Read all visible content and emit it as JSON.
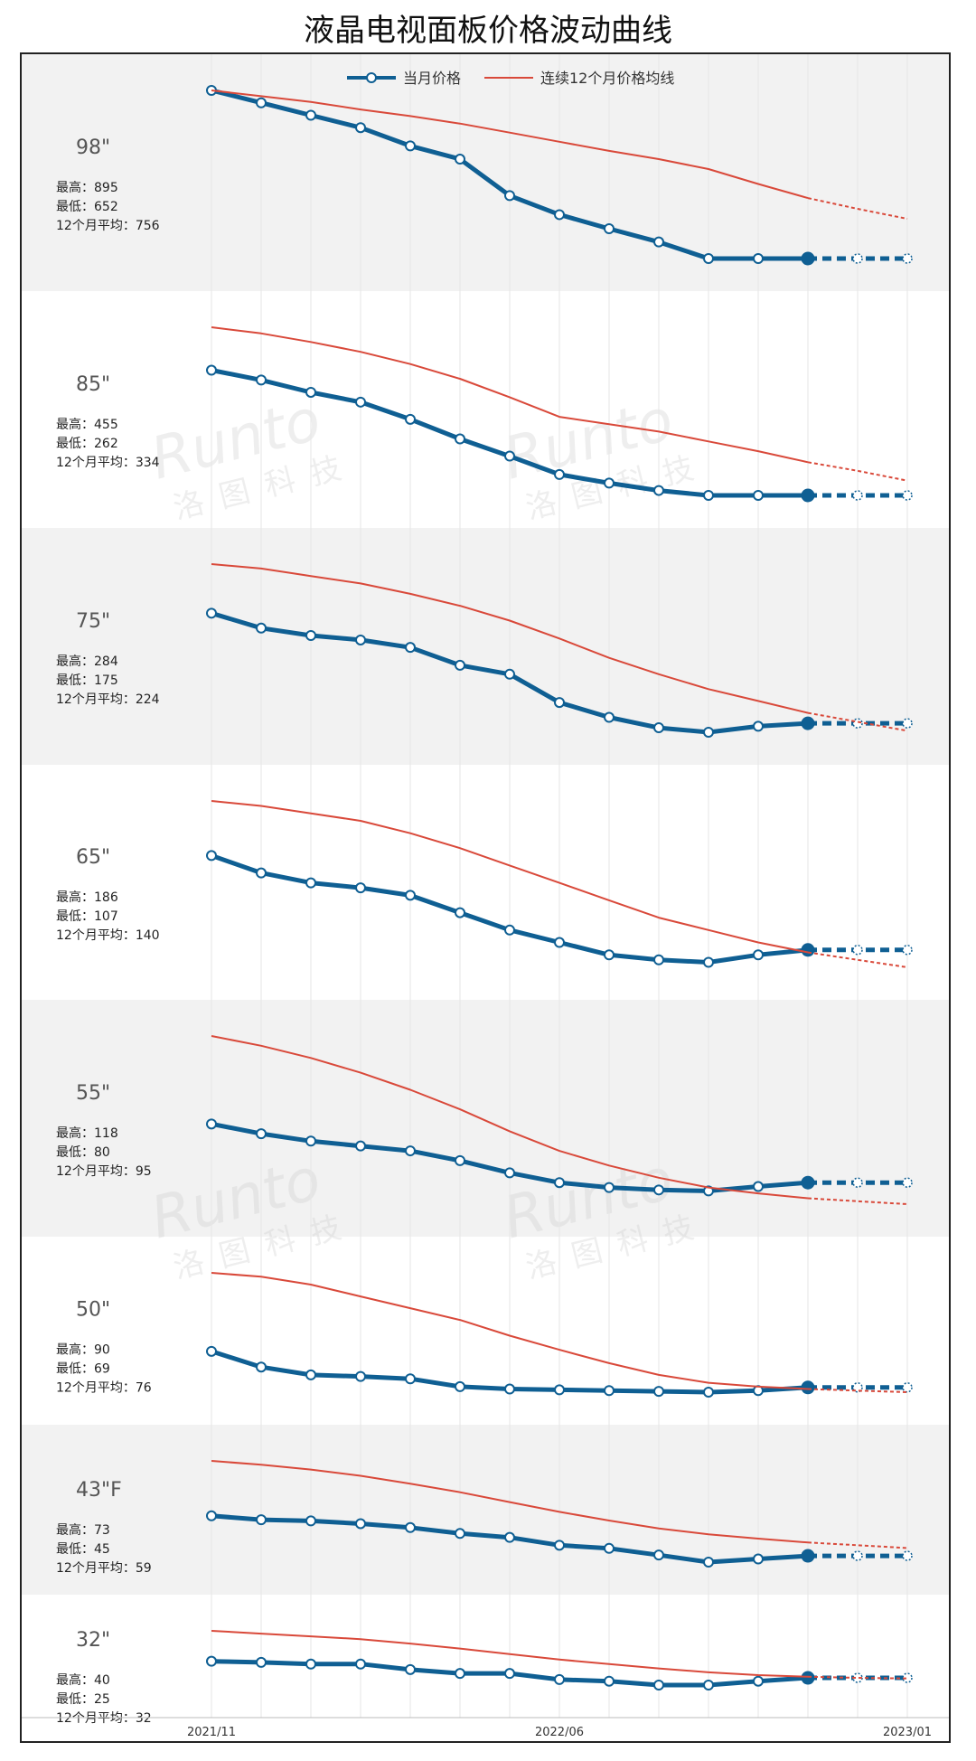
{
  "chart_title": "液晶电视面板价格波动曲线",
  "legend": {
    "position": "top-center",
    "monthly": "当月价格",
    "rolling": "连续12个月价格均线"
  },
  "x_axis": {
    "ticks": [
      "2021/11",
      "2022/06",
      "2023/01"
    ]
  },
  "stat_labels": {
    "max": "最高：",
    "min": "最低：",
    "avg": "12个月平均："
  },
  "watermark": {
    "brand": "Runto",
    "cn": "洛图科技"
  },
  "colors": {
    "monthly": "#0f5f93",
    "rolling": "#d9493a",
    "band": "#f2f2f2",
    "grid": "#e6e6e6"
  },
  "chart_data": [
    {
      "type": "line",
      "panel": "98\"",
      "stats": {
        "max": "895",
        "min": "652",
        "avg": "756"
      },
      "x": [
        "2021/11",
        "2021/12",
        "2022/01",
        "2022/02",
        "2022/03",
        "2022/04",
        "2022/05",
        "2022/06",
        "2022/07",
        "2022/08",
        "2022/09",
        "2022/10",
        "2022/11",
        "2022/12",
        "2023/01"
      ],
      "series": [
        {
          "name": "当月价格",
          "values": [
            895,
            880,
            865,
            850,
            828,
            812,
            768,
            745,
            728,
            712,
            692,
            692,
            692,
            692,
            692
          ],
          "forecast_from": 12
        },
        {
          "name": "连续12个月价格均线",
          "values": [
            895,
            888,
            881,
            872,
            864,
            855,
            844,
            833,
            822,
            812,
            800,
            782,
            765,
            752,
            740
          ],
          "forecast_from": 12
        }
      ]
    },
    {
      "type": "line",
      "panel": "85\"",
      "stats": {
        "max": "455",
        "min": "262",
        "avg": "334"
      },
      "x": [
        "2021/11",
        "2021/12",
        "2022/01",
        "2022/02",
        "2022/03",
        "2022/04",
        "2022/05",
        "2022/06",
        "2022/07",
        "2022/08",
        "2022/09",
        "2022/10",
        "2022/11",
        "2022/12",
        "2023/01"
      ],
      "series": [
        {
          "name": "当月价格",
          "values": [
            400,
            392,
            382,
            374,
            360,
            344,
            330,
            315,
            308,
            302,
            298,
            298,
            298,
            298,
            298
          ],
          "forecast_from": 12
        },
        {
          "name": "连续12个月价格均线",
          "values": [
            435,
            430,
            423,
            415,
            405,
            393,
            378,
            362,
            356,
            350,
            342,
            334,
            325,
            318,
            310
          ],
          "forecast_from": 12
        }
      ]
    },
    {
      "type": "line",
      "panel": "75\"",
      "stats": {
        "max": "284",
        "min": "175",
        "avg": "224"
      },
      "x": [
        "2021/11",
        "2021/12",
        "2022/01",
        "2022/02",
        "2022/03",
        "2022/04",
        "2022/05",
        "2022/06",
        "2022/07",
        "2022/08",
        "2022/09",
        "2022/10",
        "2022/11",
        "2022/12",
        "2023/01"
      ],
      "series": [
        {
          "name": "当月价格",
          "values": [
            265,
            255,
            250,
            247,
            242,
            230,
            224,
            205,
            195,
            188,
            185,
            189,
            191,
            191,
            191
          ],
          "forecast_from": 12
        },
        {
          "name": "连续12个月价格均线",
          "values": [
            298,
            295,
            290,
            285,
            278,
            270,
            260,
            248,
            235,
            224,
            214,
            206,
            198,
            192,
            186
          ],
          "forecast_from": 12
        }
      ]
    },
    {
      "type": "line",
      "panel": "65\"",
      "stats": {
        "max": "186",
        "min": "107",
        "avg": "140"
      },
      "x": [
        "2021/11",
        "2021/12",
        "2022/01",
        "2022/02",
        "2022/03",
        "2022/04",
        "2022/05",
        "2022/06",
        "2022/07",
        "2022/08",
        "2022/09",
        "2022/10",
        "2022/11",
        "2022/12",
        "2023/01"
      ],
      "series": [
        {
          "name": "当月价格",
          "values": [
            165,
            158,
            154,
            152,
            149,
            142,
            135,
            130,
            125,
            123,
            122,
            125,
            127,
            127,
            127
          ],
          "forecast_from": 12
        },
        {
          "name": "连续12个月价格均线",
          "values": [
            187,
            185,
            182,
            179,
            174,
            168,
            161,
            154,
            147,
            140,
            135,
            130,
            126,
            123,
            120
          ],
          "forecast_from": 12
        }
      ]
    },
    {
      "type": "line",
      "panel": "55\"",
      "stats": {
        "max": "118",
        "min": "80",
        "avg": "95"
      },
      "x": [
        "2021/11",
        "2021/12",
        "2022/01",
        "2022/02",
        "2022/03",
        "2022/04",
        "2022/05",
        "2022/06",
        "2022/07",
        "2022/08",
        "2022/09",
        "2022/10",
        "2022/11",
        "2022/12",
        "2023/01"
      ],
      "series": [
        {
          "name": "当月价格",
          "values": [
            98,
            96,
            94.5,
            93.5,
            92.5,
            90.5,
            88,
            86,
            85,
            84.5,
            84.3,
            85.2,
            86,
            86,
            86
          ],
          "forecast_from": 12
        },
        {
          "name": "连续12个月价格均线",
          "values": [
            116,
            114,
            111.5,
            108.5,
            105,
            101,
            96.5,
            92.5,
            89.5,
            87,
            85,
            83.8,
            82.8,
            82.2,
            81.6
          ],
          "forecast_from": 12
        }
      ]
    },
    {
      "type": "line",
      "panel": "50\"",
      "stats": {
        "max": "90",
        "min": "69",
        "avg": "76"
      },
      "x": [
        "2021/11",
        "2021/12",
        "2022/01",
        "2022/02",
        "2022/03",
        "2022/04",
        "2022/05",
        "2022/06",
        "2022/07",
        "2022/08",
        "2022/09",
        "2022/10",
        "2022/11",
        "2022/12",
        "2023/01"
      ],
      "series": [
        {
          "name": "当月价格",
          "values": [
            78,
            76,
            75,
            74.8,
            74.5,
            73.5,
            73.2,
            73.1,
            73,
            72.9,
            72.8,
            73,
            73.4,
            73.4,
            73.4
          ],
          "forecast_from": 12
        },
        {
          "name": "连续12个月价格均线",
          "values": [
            88,
            87.5,
            86.5,
            85,
            83.5,
            82,
            80,
            78.2,
            76.5,
            75,
            74,
            73.5,
            73.2,
            73,
            72.8
          ],
          "forecast_from": 12
        }
      ]
    },
    {
      "type": "line",
      "panel": "43\"F",
      "stats": {
        "max": "73",
        "min": "45",
        "avg": "59"
      },
      "x": [
        "2021/11",
        "2021/12",
        "2022/01",
        "2022/02",
        "2022/03",
        "2022/04",
        "2022/05",
        "2022/06",
        "2022/07",
        "2022/08",
        "2022/09",
        "2022/10",
        "2022/11",
        "2022/12",
        "2023/01"
      ],
      "series": [
        {
          "name": "当月价格",
          "values": [
            61,
            60,
            59.7,
            59,
            58,
            56.5,
            55.5,
            53.5,
            52.7,
            51,
            49.2,
            50,
            50.8,
            50.8,
            50.8
          ],
          "forecast_from": 12
        },
        {
          "name": "连续12个月价格均线",
          "values": [
            75,
            74,
            72.8,
            71.2,
            69.2,
            67,
            64.5,
            62,
            59.8,
            57.8,
            56.3,
            55.2,
            54.2,
            53.5,
            52.8
          ],
          "forecast_from": 12
        }
      ]
    },
    {
      "type": "line",
      "panel": "32\"",
      "stats": {
        "max": "40",
        "min": "25",
        "avg": "32"
      },
      "x": [
        "2021/11",
        "2021/12",
        "2022/01",
        "2022/02",
        "2022/03",
        "2022/04",
        "2022/05",
        "2022/06",
        "2022/07",
        "2022/08",
        "2022/09",
        "2022/10",
        "2022/11",
        "2022/12",
        "2023/01"
      ],
      "series": [
        {
          "name": "当月价格",
          "values": [
            30.5,
            30.3,
            30,
            30,
            29,
            28.3,
            28.3,
            27.2,
            26.9,
            26.2,
            26.2,
            26.9,
            27.5,
            27.5,
            27.5
          ],
          "forecast_from": 12
        },
        {
          "name": "连续12个月价格均线",
          "values": [
            36,
            35.5,
            35,
            34.5,
            33.7,
            32.8,
            31.8,
            30.8,
            30,
            29.2,
            28.5,
            28,
            27.7,
            27.5,
            27.4
          ],
          "forecast_from": 12
        }
      ]
    }
  ]
}
